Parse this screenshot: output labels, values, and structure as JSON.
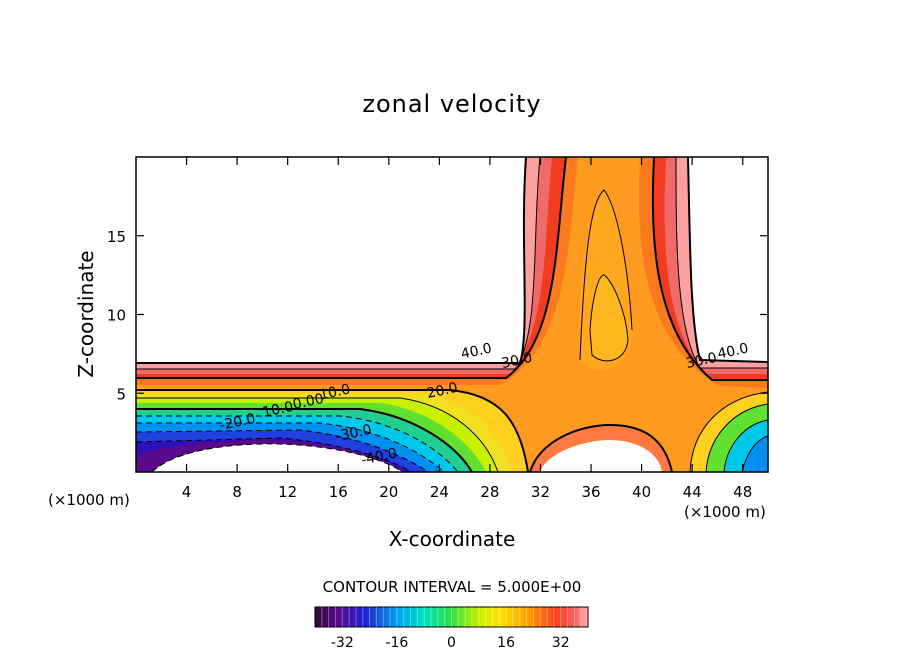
{
  "chart_data": {
    "type": "heatmap",
    "title": "zonal velocity",
    "xlabel": "X-coordinate",
    "ylabel": "Z-coordinate",
    "x_unit_left": "(×1000 m)",
    "x_unit_right": "(×1000 m)",
    "xlim": [
      0,
      50
    ],
    "ylim": [
      0,
      20
    ],
    "x_ticks": [
      4,
      8,
      12,
      16,
      20,
      24,
      28,
      32,
      36,
      40,
      44,
      48
    ],
    "x_tick_labels": [
      "4",
      "8",
      "12",
      "16",
      "20",
      "24",
      "28",
      "32",
      "36",
      "40",
      "44",
      "48"
    ],
    "y_ticks": [
      5,
      10,
      15
    ],
    "y_tick_labels": [
      "5",
      "10",
      "15"
    ],
    "contour_interval_text": "CONTOUR INTERVAL = 5.000E+00",
    "contour_interval": 5.0,
    "contour_labels": [
      {
        "text": "40.0",
        "x": 27.0,
        "z": 7.4
      },
      {
        "text": "30.0",
        "x": 30.2,
        "z": 6.8
      },
      {
        "text": "30.0",
        "x": 44.8,
        "z": 6.8
      },
      {
        "text": "40.0",
        "x": 47.3,
        "z": 7.4
      },
      {
        "text": "20.0",
        "x": 24.3,
        "z": 4.9
      },
      {
        "text": "10.0",
        "x": 15.8,
        "z": 4.8
      },
      {
        "text": "0.00",
        "x": 13.7,
        "z": 4.2
      },
      {
        "text": "10.0",
        "x": 11.3,
        "z": 3.7
      },
      {
        "text": "-20.0",
        "x": 8.1,
        "z": 2.9
      },
      {
        "text": "-30.0",
        "x": 17.3,
        "z": 2.2
      },
      {
        "text": "-40.0",
        "x": 19.3,
        "z": 0.7
      }
    ],
    "colorbar": {
      "range": [
        -40,
        40
      ],
      "tick_values": [
        -32,
        -16,
        0,
        16,
        32
      ],
      "tick_labels": [
        "-32",
        "-16",
        "0",
        "16",
        "32"
      ]
    },
    "grid": false,
    "legend": "colorbar-bottom"
  }
}
